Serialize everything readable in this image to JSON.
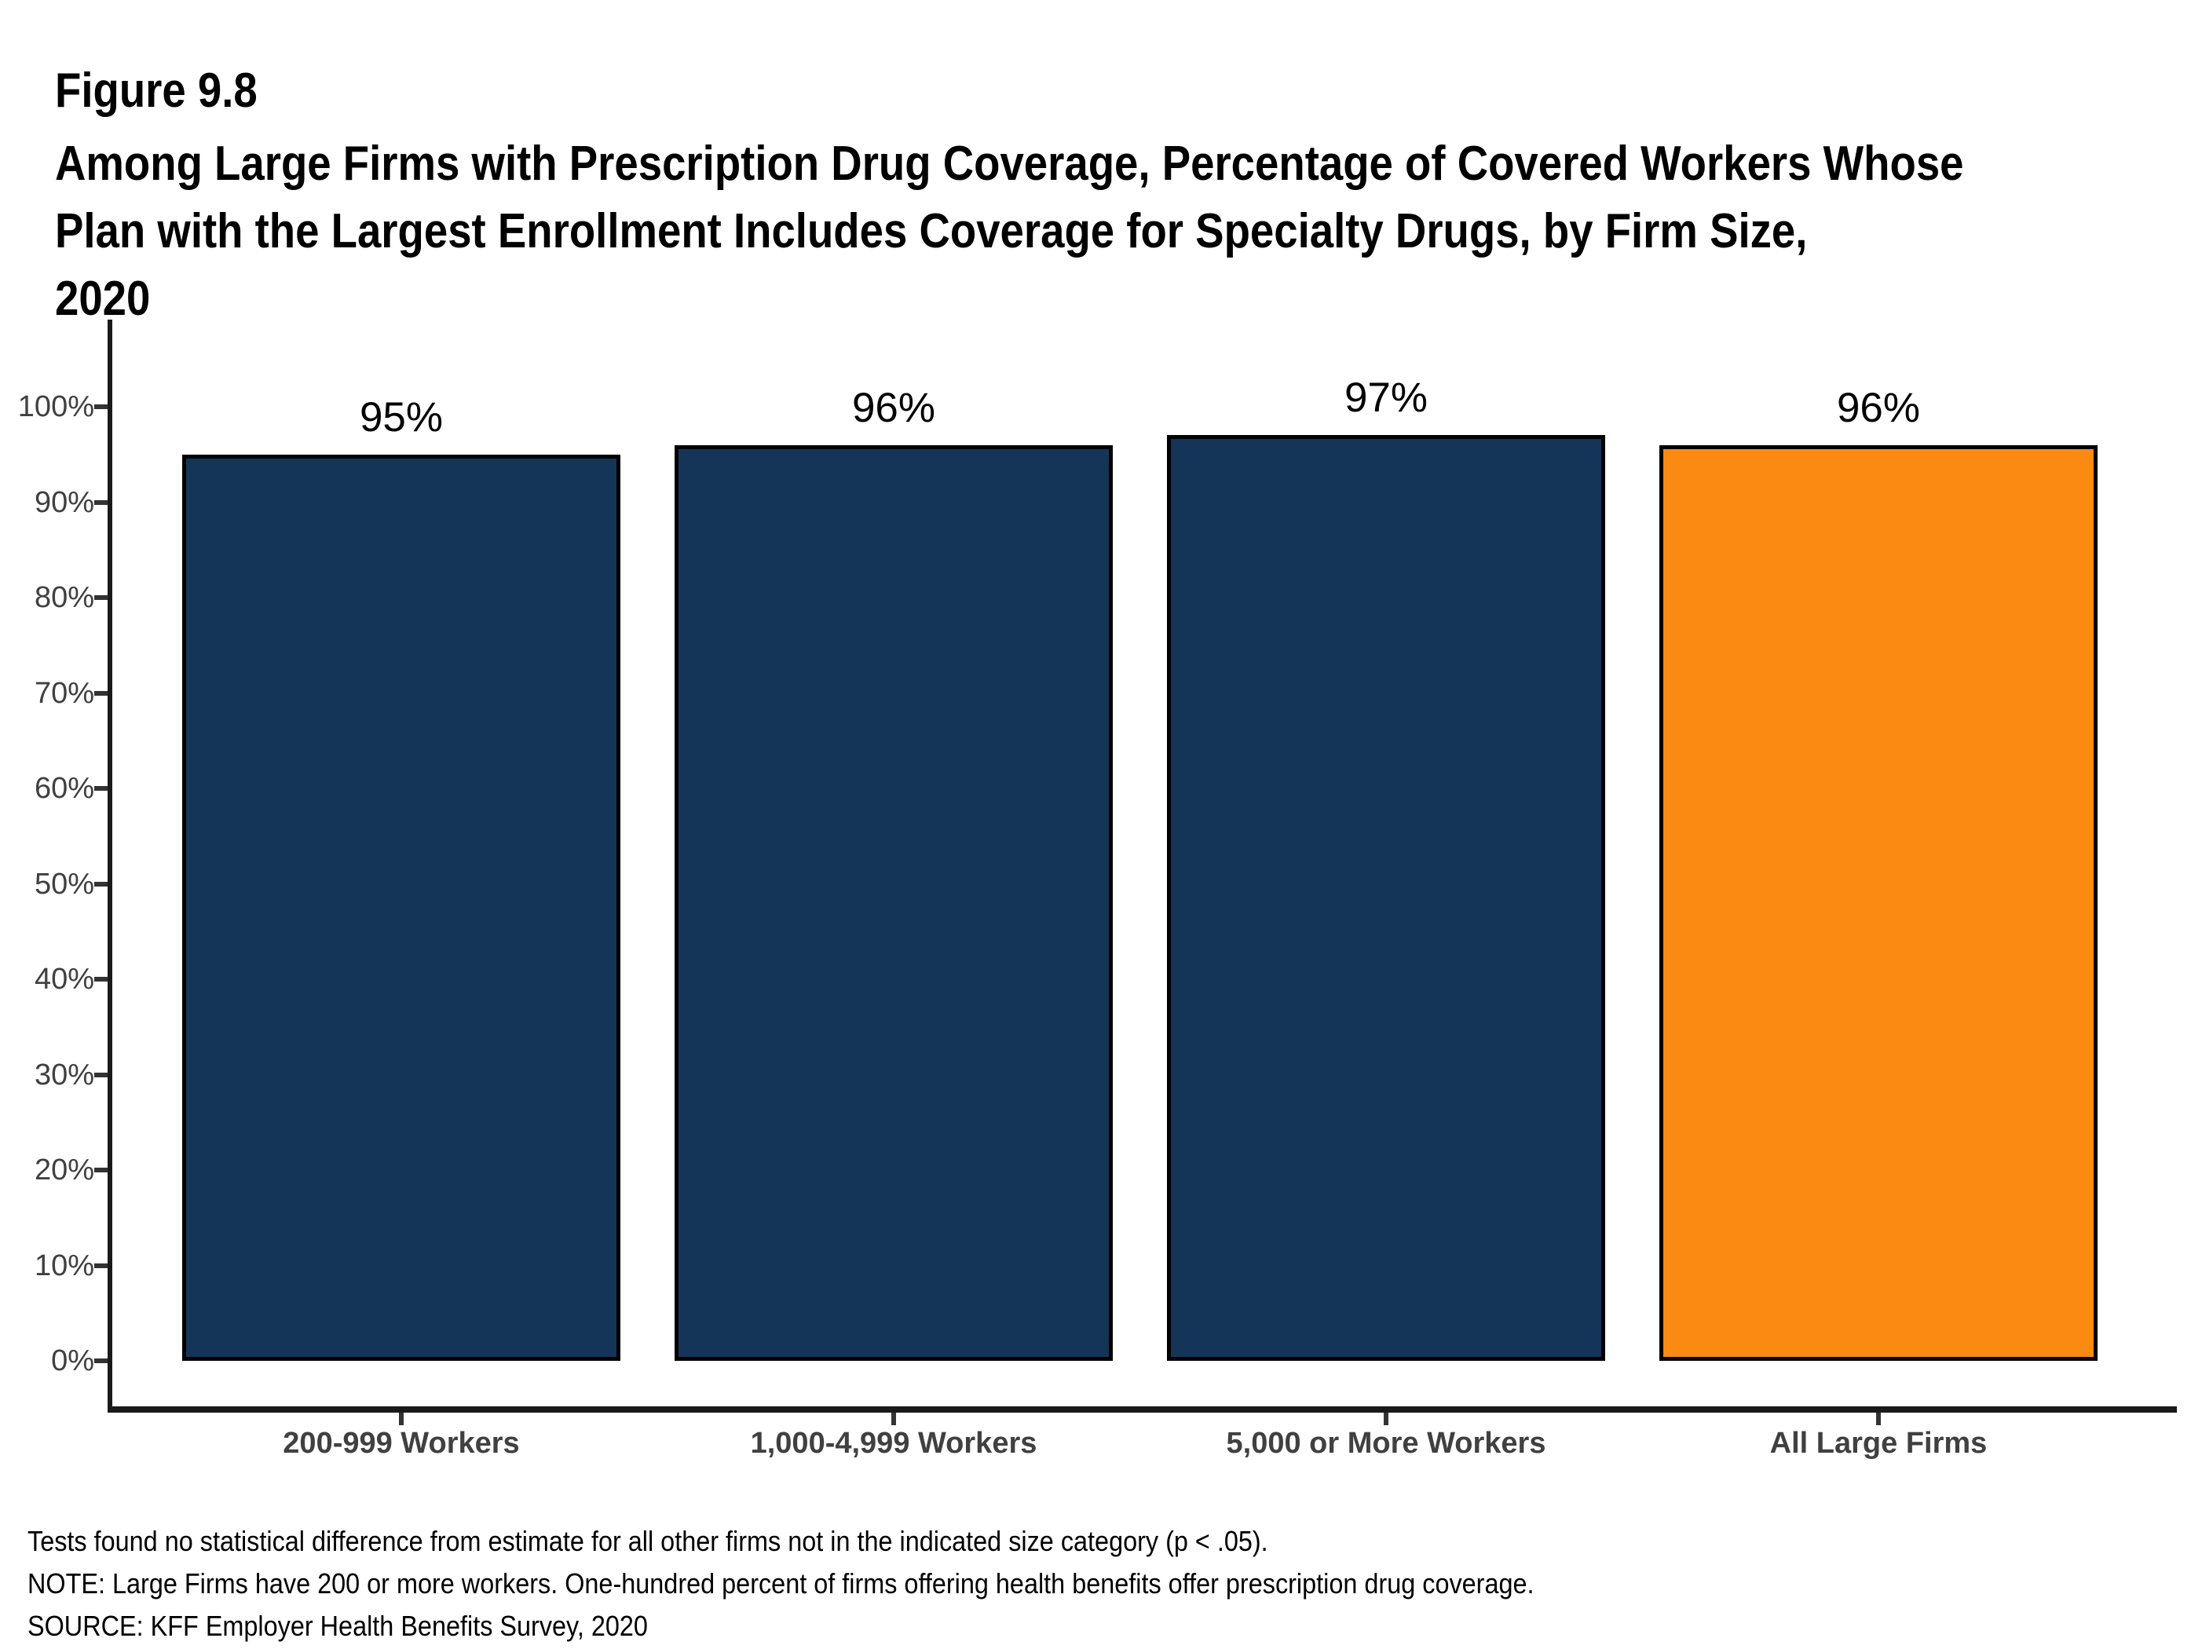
{
  "figure_label": "Figure 9.8",
  "title_lines": [
    "Among Large Firms with Prescription Drug Coverage, Percentage of Covered Workers Whose",
    "Plan with the Largest Enrollment Includes Coverage for Specialty Drugs, by Firm Size,",
    "2020"
  ],
  "chart_data": {
    "type": "bar",
    "title": "Among Large Firms with Prescription Drug Coverage, Percentage of Covered Workers Whose Plan with the Largest Enrollment Includes Coverage for Specialty Drugs, by Firm Size, 2020",
    "categories": [
      "200-999 Workers",
      "1,000-4,999 Workers",
      "5,000 or More Workers",
      "All Large Firms"
    ],
    "values": [
      95,
      96,
      97,
      96
    ],
    "value_labels": [
      "95%",
      "96%",
      "97%",
      "96%"
    ],
    "bar_colors": [
      "#143558",
      "#143558",
      "#143558",
      "#FB8A13"
    ],
    "bar_border_color": "#000000",
    "xlabel": "",
    "ylabel": "",
    "ylim": [
      0,
      100
    ],
    "ytick_values": [
      0,
      10,
      20,
      30,
      40,
      50,
      60,
      70,
      80,
      90,
      100
    ],
    "ytick_labels": [
      "0%",
      "10%",
      "20%",
      "30%",
      "40%",
      "50%",
      "60%",
      "70%",
      "80%",
      "90%",
      "100%"
    ],
    "grid": false,
    "legend": "none"
  },
  "notes": [
    "Tests found no statistical difference from estimate for all other firms not in the indicated size category (p < .05).",
    "NOTE: Large Firms have 200 or more workers. One-hundred percent of firms offering health benefits offer prescription drug coverage.",
    "SOURCE: KFF Employer Health Benefits Survey, 2020"
  ],
  "colors": {
    "navy": "#143558",
    "orange": "#FB8A13",
    "axis": "#1a1a1a",
    "tick_label_gray": "#404040"
  }
}
